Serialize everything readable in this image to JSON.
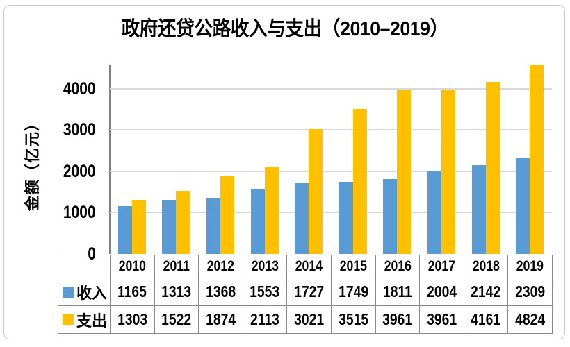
{
  "chart_data": {
    "type": "bar",
    "title": "政府还贷公路收入与支出（2010–2019）",
    "categories": [
      "2010",
      "2011",
      "2012",
      "2013",
      "2014",
      "2015",
      "2016",
      "2017",
      "2018",
      "2019"
    ],
    "series": [
      {
        "name": "收入",
        "color": "#5B9BD5",
        "values": [
          1165,
          1313,
          1368,
          1553,
          1727,
          1749,
          1811,
          2004,
          2142,
          2309
        ]
      },
      {
        "name": "支出",
        "color": "#FFC000",
        "values": [
          1303,
          1522,
          1874,
          2113,
          3021,
          3515,
          3961,
          3961,
          4161,
          4824
        ]
      }
    ],
    "xlabel": "",
    "ylabel": "金额（亿元）",
    "yticks": [
      0,
      1000,
      2000,
      3000,
      4000
    ],
    "ylim": [
      0,
      4580
    ],
    "grid": true,
    "legend_position": "data-table-left",
    "data_table_shown": true
  },
  "colors": {
    "income_bar": "#5B9BD5",
    "expense_bar": "#FFC000",
    "gridline": "#D9D9D9",
    "axis_line": "#808080",
    "table_border": "#898989",
    "frame_border": "#C9C9C9",
    "text": "#000000"
  }
}
